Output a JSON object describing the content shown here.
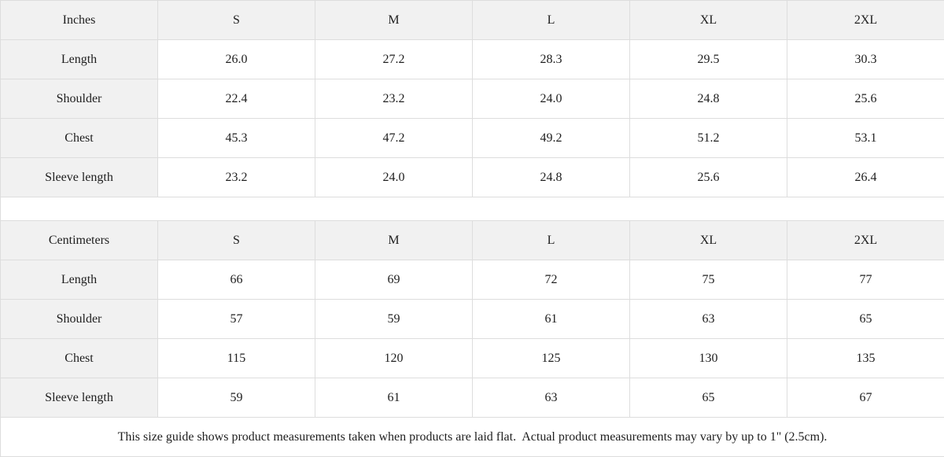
{
  "colors": {
    "header_bg": "#f1f1f1",
    "border": "#dddddd",
    "text": "#1e1e1e"
  },
  "tables": [
    {
      "unit_label": "Inches",
      "sizes": [
        "S",
        "M",
        "L",
        "XL",
        "2XL"
      ],
      "rows": [
        {
          "label": "Length",
          "values": [
            "26.0",
            "27.2",
            "28.3",
            "29.5",
            "30.3"
          ]
        },
        {
          "label": "Shoulder",
          "values": [
            "22.4",
            "23.2",
            "24.0",
            "24.8",
            "25.6"
          ]
        },
        {
          "label": "Chest",
          "values": [
            "45.3",
            "47.2",
            "49.2",
            "51.2",
            "53.1"
          ]
        },
        {
          "label": "Sleeve length",
          "values": [
            "23.2",
            "24.0",
            "24.8",
            "25.6",
            "26.4"
          ]
        }
      ]
    },
    {
      "unit_label": "Centimeters",
      "sizes": [
        "S",
        "M",
        "L",
        "XL",
        "2XL"
      ],
      "rows": [
        {
          "label": "Length",
          "values": [
            "66",
            "69",
            "72",
            "75",
            "77"
          ]
        },
        {
          "label": "Shoulder",
          "values": [
            "57",
            "59",
            "61",
            "63",
            "65"
          ]
        },
        {
          "label": "Chest",
          "values": [
            "115",
            "120",
            "125",
            "130",
            "135"
          ]
        },
        {
          "label": "Sleeve length",
          "values": [
            "59",
            "61",
            "63",
            "65",
            "67"
          ]
        }
      ]
    }
  ],
  "footer": {
    "note": "This size guide shows product measurements taken when products are laid flat.  Actual product measurements may vary by up to 1\" (2.5cm)."
  }
}
